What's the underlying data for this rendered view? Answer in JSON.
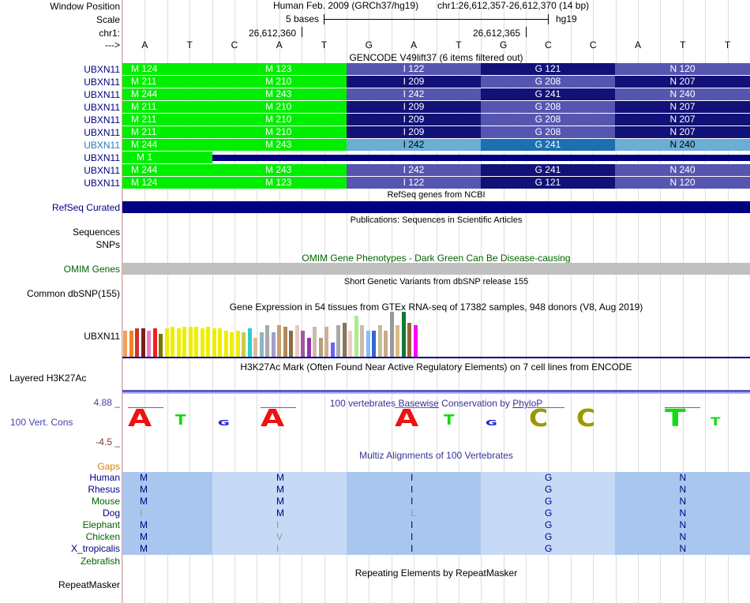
{
  "header": {
    "window_position_label": "Window Position",
    "scale_label": "Scale",
    "chrom_label": "chr1:",
    "arrow_label": "--->",
    "assembly": "Human Feb. 2009 (GRCh37/hg19)",
    "position": "chr1:26,612,357-26,612,370 (14 bp)",
    "scale_text": "5 bases",
    "db_text": "hg19",
    "coord1": "26,612,360",
    "coord2": "26,612,365",
    "bases": [
      "A",
      "T",
      "C",
      "A",
      "T",
      "G",
      "A",
      "T",
      "G",
      "C",
      "C",
      "A",
      "T",
      "T"
    ]
  },
  "gencode": {
    "title": "GENCODE V49lift37 (6 items filtered out)",
    "rows": [
      {
        "label": "UBXN11",
        "highlight": false,
        "cells": [
          "M 124",
          "M 123",
          "I 122",
          "G 121",
          "N 120"
        ],
        "colors": [
          "#00ee00",
          "#00ee00",
          "#5656b0",
          "#111177",
          "#5656b0"
        ]
      },
      {
        "label": "UBXN11",
        "highlight": false,
        "cells": [
          "M 211",
          "M 210",
          "I 209",
          "G 208",
          "N 207"
        ],
        "colors": [
          "#00ee00",
          "#00ee00",
          "#111177",
          "#5656b0",
          "#111177"
        ]
      },
      {
        "label": "UBXN11",
        "highlight": false,
        "cells": [
          "M 244",
          "M 243",
          "I 242",
          "G 241",
          "N 240"
        ],
        "colors": [
          "#00ee00",
          "#00ee00",
          "#5656b0",
          "#111177",
          "#5656b0"
        ]
      },
      {
        "label": "UBXN11",
        "highlight": false,
        "cells": [
          "M 211",
          "M 210",
          "I 209",
          "G 208",
          "N 207"
        ],
        "colors": [
          "#00ee00",
          "#00ee00",
          "#111177",
          "#5656b0",
          "#111177"
        ]
      },
      {
        "label": "UBXN11",
        "highlight": false,
        "cells": [
          "M 211",
          "M 210",
          "I 209",
          "G 208",
          "N 207"
        ],
        "colors": [
          "#00ee00",
          "#00ee00",
          "#111177",
          "#5656b0",
          "#111177"
        ]
      },
      {
        "label": "UBXN11",
        "highlight": false,
        "cells": [
          "M 211",
          "M 210",
          "I 209",
          "G 208",
          "N 207"
        ],
        "colors": [
          "#00ee00",
          "#00ee00",
          "#111177",
          "#5656b0",
          "#111177"
        ]
      },
      {
        "label": "UBXN11",
        "highlight": true,
        "cells": [
          "M 244",
          "M 243",
          "I 242",
          "G 241",
          "N 240"
        ],
        "colors": [
          "#00ee00",
          "#00ee00",
          "#6aaed6",
          "#1a70b0",
          "#6aaed6"
        ]
      },
      {
        "label": "UBXN11",
        "highlight": false,
        "special": true,
        "cells": [
          "M 1"
        ]
      },
      {
        "label": "UBXN11",
        "highlight": false,
        "cells": [
          "M 244",
          "M 243",
          "I 242",
          "G 241",
          "N 240"
        ],
        "colors": [
          "#00ee00",
          "#00ee00",
          "#5656b0",
          "#111177",
          "#5656b0"
        ]
      },
      {
        "label": "UBXN11",
        "highlight": false,
        "cells": [
          "M 124",
          "M 123",
          "I 122",
          "G 121",
          "N 120"
        ],
        "colors": [
          "#00ee00",
          "#00ee00",
          "#5656b0",
          "#111177",
          "#5656b0"
        ]
      }
    ]
  },
  "refseq": {
    "title": "RefSeq genes from NCBI",
    "label": "RefSeq Curated"
  },
  "pubs": {
    "title": "Publications: Sequences in Scientific Articles",
    "label1": "Sequences",
    "label2": "SNPs"
  },
  "omim": {
    "title": "OMIM Gene Phenotypes - Dark Green Can Be Disease-causing",
    "label": "OMIM Genes"
  },
  "dbsnp": {
    "title": "Short Genetic Variants from dbSNP release 155",
    "label": "Common dbSNP(155)"
  },
  "gtex": {
    "title": "Gene Expression in 54 tissues from GTEx RNA-seq of 17382 samples, 948 donors (V8, Aug 2019)",
    "label": "UBXN11",
    "bars": [
      {
        "v": 0.33,
        "c": "#f3a05a"
      },
      {
        "v": 0.33,
        "c": "#f57f20"
      },
      {
        "v": 0.36,
        "c": "#d0312d"
      },
      {
        "v": 0.36,
        "c": "#7a1e1e"
      },
      {
        "v": 0.33,
        "c": "#ef7bbf"
      },
      {
        "v": 0.36,
        "c": "#ee2222"
      },
      {
        "v": 0.29,
        "c": "#777700"
      },
      {
        "v": 0.36,
        "c": "#eeee00"
      },
      {
        "v": 0.38,
        "c": "#eeee00"
      },
      {
        "v": 0.36,
        "c": "#eeee00"
      },
      {
        "v": 0.38,
        "c": "#eeee00"
      },
      {
        "v": 0.38,
        "c": "#eeee00"
      },
      {
        "v": 0.38,
        "c": "#eeee00"
      },
      {
        "v": 0.36,
        "c": "#eeee00"
      },
      {
        "v": 0.38,
        "c": "#eeee00"
      },
      {
        "v": 0.36,
        "c": "#eeee00"
      },
      {
        "v": 0.36,
        "c": "#eeee00"
      },
      {
        "v": 0.33,
        "c": "#eeee00"
      },
      {
        "v": 0.31,
        "c": "#eeee00"
      },
      {
        "v": 0.33,
        "c": "#eeee00"
      },
      {
        "v": 0.31,
        "c": "#cccc44"
      },
      {
        "v": 0.36,
        "c": "#33cccc"
      },
      {
        "v": 0.24,
        "c": "#ddbb99"
      },
      {
        "v": 0.31,
        "c": "#8fb4c4"
      },
      {
        "v": 0.4,
        "c": "#aaaaaa"
      },
      {
        "v": 0.31,
        "c": "#a0a0c8"
      },
      {
        "v": 0.4,
        "c": "#c8a070"
      },
      {
        "v": 0.38,
        "c": "#b08a5a"
      },
      {
        "v": 0.33,
        "c": "#8b6b3f"
      },
      {
        "v": 0.4,
        "c": "#e8c8c8"
      },
      {
        "v": 0.33,
        "c": "#9f5a9f"
      },
      {
        "v": 0.24,
        "c": "#9933aa"
      },
      {
        "v": 0.38,
        "c": "#ccbbaa"
      },
      {
        "v": 0.24,
        "c": "#b0a080"
      },
      {
        "v": 0.38,
        "c": "#cfb090"
      },
      {
        "v": 0.18,
        "c": "#6666ff"
      },
      {
        "v": 0.4,
        "c": "#aaaaaa"
      },
      {
        "v": 0.43,
        "c": "#887755"
      },
      {
        "v": 0.33,
        "c": "#eecccc"
      },
      {
        "v": 0.52,
        "c": "#aaee88"
      },
      {
        "v": 0.4,
        "c": "#ccbbaa"
      },
      {
        "v": 0.33,
        "c": "#88bbff"
      },
      {
        "v": 0.33,
        "c": "#3366cc"
      },
      {
        "v": 0.4,
        "c": "#ccbb99"
      },
      {
        "v": 0.33,
        "c": "#c8aa88"
      },
      {
        "v": 0.57,
        "c": "#999999"
      },
      {
        "v": 0.4,
        "c": "#ddbb88"
      },
      {
        "v": 0.57,
        "c": "#117733"
      },
      {
        "v": 0.43,
        "c": "#996633"
      },
      {
        "v": 0.4,
        "c": "#ff00ff"
      }
    ]
  },
  "h3k27": {
    "title": "H3K27Ac Mark (Often Found Near Active Regulatory Elements) on 7 cell lines from ENCODE",
    "label": "Layered H3K27Ac"
  },
  "cons": {
    "title_pre": "100 vertebrates ",
    "title_link1": "Basewise",
    "title_mid": " Conservation by ",
    "title_link2": "PhyloP",
    "label": "100 Vert. Cons",
    "ymax": "4.88 _",
    "ymin": "-4.5 _"
  },
  "multiz": {
    "title": "Multiz Alignments of 100 Vertebrates",
    "gaps_label": "Gaps",
    "species": [
      {
        "name": "Human",
        "aa": [
          "M",
          "M",
          "I",
          "G",
          "N"
        ],
        "faded": [
          false,
          false,
          false,
          false,
          false
        ]
      },
      {
        "name": "Rhesus",
        "aa": [
          "M",
          "M",
          "I",
          "G",
          "N"
        ],
        "faded": [
          false,
          false,
          false,
          false,
          false
        ]
      },
      {
        "name": "Mouse",
        "aa": [
          "M",
          "M",
          "I",
          "G",
          "N"
        ],
        "faded": [
          false,
          false,
          false,
          false,
          false
        ]
      },
      {
        "name": "Dog",
        "aa": [
          "I",
          "M",
          "L",
          "G",
          "N"
        ],
        "faded": [
          true,
          false,
          true,
          false,
          false
        ]
      },
      {
        "name": "Elephant",
        "aa": [
          "M",
          "I",
          "I",
          "G",
          "N"
        ],
        "faded": [
          false,
          true,
          false,
          false,
          false
        ]
      },
      {
        "name": "Chicken",
        "aa": [
          "M",
          "V",
          "I",
          "G",
          "N"
        ],
        "faded": [
          false,
          true,
          false,
          false,
          false
        ]
      },
      {
        "name": "X_tropicalis",
        "aa": [
          "M",
          "I",
          "I",
          "G",
          "N"
        ],
        "faded": [
          false,
          true,
          false,
          false,
          false
        ]
      }
    ],
    "zebrafish_label": "Zebrafish"
  },
  "repeat": {
    "title": "Repeating Elements by RepeatMasker",
    "label": "RepeatMasker"
  },
  "colors": {
    "navy": "#000080",
    "green_label": "#006400",
    "gaps": "#e08000",
    "cons_label": "#4444aa",
    "light_blue": "#6aaed6"
  }
}
